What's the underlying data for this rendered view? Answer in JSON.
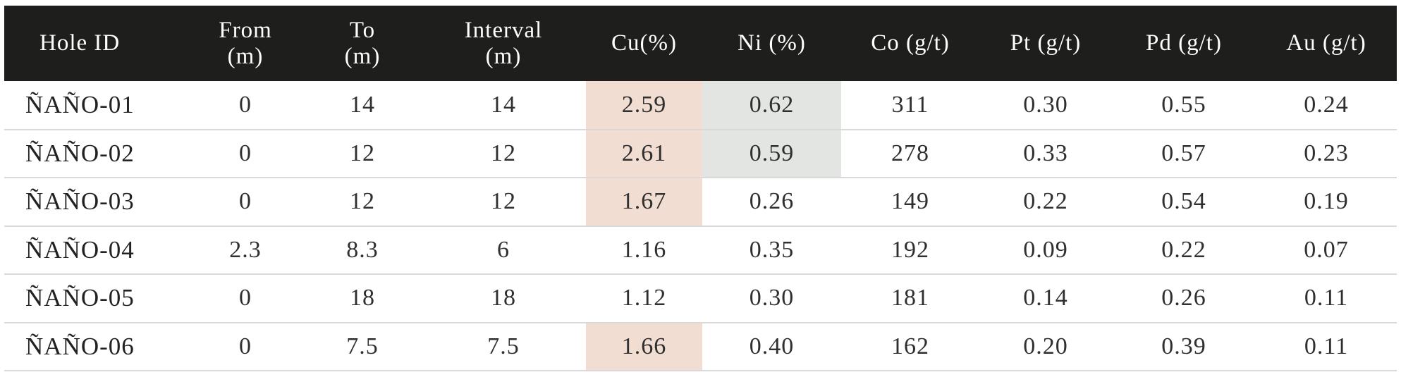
{
  "table": {
    "headers": [
      {
        "key": "hole_id",
        "lines": [
          "Hole ID"
        ]
      },
      {
        "key": "from",
        "lines": [
          "From",
          "(m)"
        ]
      },
      {
        "key": "to",
        "lines": [
          "To",
          "(m)"
        ]
      },
      {
        "key": "interval",
        "lines": [
          "Interval",
          "(m)"
        ]
      },
      {
        "key": "cu",
        "lines": [
          "Cu(%)"
        ]
      },
      {
        "key": "ni",
        "lines": [
          "Ni (%)"
        ]
      },
      {
        "key": "co",
        "lines": [
          "Co (g/t)"
        ]
      },
      {
        "key": "pt",
        "lines": [
          "Pt (g/t)"
        ]
      },
      {
        "key": "pd",
        "lines": [
          "Pd (g/t)"
        ]
      },
      {
        "key": "au",
        "lines": [
          "Au (g/t)"
        ]
      }
    ],
    "rows": [
      {
        "hole_id": "ÑAÑO-01",
        "from": "0",
        "to": "14",
        "interval": "14",
        "cu": "2.59",
        "ni": "0.62",
        "co": "311",
        "pt": "0.30",
        "pd": "0.55",
        "au": "0.24"
      },
      {
        "hole_id": "ÑAÑO-02",
        "from": "0",
        "to": "12",
        "interval": "12",
        "cu": "2.61",
        "ni": "0.59",
        "co": "278",
        "pt": "0.33",
        "pd": "0.57",
        "au": "0.23"
      },
      {
        "hole_id": "ÑAÑO-03",
        "from": "0",
        "to": "12",
        "interval": "12",
        "cu": "1.67",
        "ni": "0.26",
        "co": "149",
        "pt": "0.22",
        "pd": "0.54",
        "au": "0.19"
      },
      {
        "hole_id": "ÑAÑO-04",
        "from": "2.3",
        "to": "8.3",
        "interval": "6",
        "cu": "1.16",
        "ni": "0.35",
        "co": "192",
        "pt": "0.09",
        "pd": "0.22",
        "au": "0.07"
      },
      {
        "hole_id": "ÑAÑO-05",
        "from": "0",
        "to": "18",
        "interval": "18",
        "cu": "1.12",
        "ni": "0.30",
        "co": "181",
        "pt": "0.14",
        "pd": "0.26",
        "au": "0.11"
      },
      {
        "hole_id": "ÑAÑO-06",
        "from": "0",
        "to": "7.5",
        "interval": "7.5",
        "cu": "1.66",
        "ni": "0.40",
        "co": "162",
        "pt": "0.20",
        "pd": "0.39",
        "au": "0.11"
      }
    ],
    "highlighted_cells": {
      "cu": [
        0,
        1,
        2,
        5
      ],
      "ni": [
        0,
        1
      ]
    },
    "colors": {
      "header_background": "#1e1e1c",
      "header_text": "#ffffff",
      "cu_highlight": "#f1ddd2",
      "ni_highlight": "#e3e5e3",
      "row_divider": "#d9d9d9"
    }
  }
}
